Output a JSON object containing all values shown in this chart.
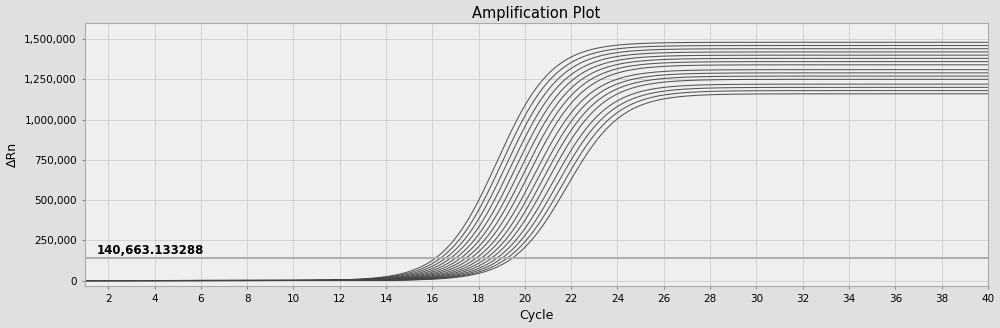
{
  "title": "Amplification Plot",
  "xlabel": "Cycle",
  "ylabel": "ΔRn",
  "xlim": [
    1,
    40
  ],
  "ylim": [
    -30000,
    1600000
  ],
  "xticks": [
    2,
    4,
    6,
    8,
    10,
    12,
    14,
    16,
    18,
    20,
    22,
    24,
    26,
    28,
    30,
    32,
    34,
    36,
    38,
    40
  ],
  "yticks": [
    0,
    250000,
    500000,
    750000,
    1000000,
    1250000,
    1500000
  ],
  "ytick_labels": [
    "0",
    "250,000",
    "500,000",
    "750,000",
    "1,000,000",
    "1,250,000",
    "1,500,000"
  ],
  "threshold": 140663.133288,
  "threshold_label": "140,663.133288",
  "num_curves": 16,
  "plateau_values": [
    1480000,
    1460000,
    1440000,
    1420000,
    1400000,
    1380000,
    1360000,
    1340000,
    1310000,
    1290000,
    1270000,
    1250000,
    1220000,
    1200000,
    1180000,
    1160000
  ],
  "midpoints": [
    18.8,
    19.0,
    19.2,
    19.4,
    19.6,
    19.8,
    20.0,
    20.2,
    20.4,
    20.6,
    20.8,
    21.0,
    21.2,
    21.4,
    21.6,
    21.8
  ],
  "steepness": 0.85,
  "background_color": "#e0e0e0",
  "plot_bg_color": "#efefef",
  "line_color": "#444444",
  "threshold_color": "#b0b0b0",
  "grid_color": "#c8c8c8"
}
